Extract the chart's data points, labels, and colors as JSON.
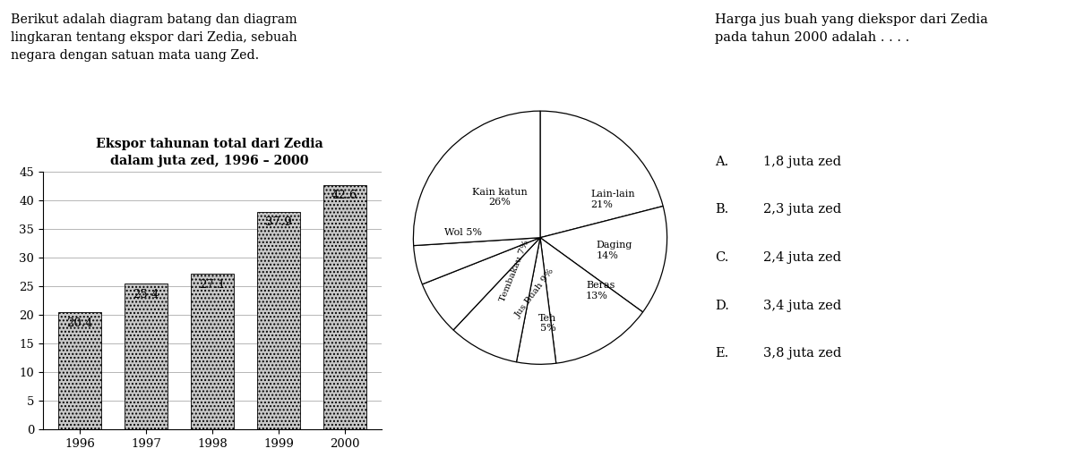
{
  "intro_text": "Berikut adalah diagram batang dan diagram\nlingkaran tentang ekspor dari Zedia, sebuah\nnegara dengan satuan mata uang Zed.",
  "bar_title": "Ekspor tahunan total dari Zedia\ndalam juta zed, 1996 – 2000",
  "bar_years": [
    "1996",
    "1997",
    "1998",
    "1999",
    "2000"
  ],
  "bar_values": [
    20.4,
    25.4,
    27.1,
    37.9,
    42.6
  ],
  "bar_color": "#c8c8c8",
  "ylim": [
    0,
    45
  ],
  "yticks": [
    0,
    5,
    10,
    15,
    20,
    25,
    30,
    35,
    40,
    45
  ],
  "pie_sizes": [
    21,
    14,
    13,
    5,
    9,
    7,
    5,
    26
  ],
  "pie_startangle": 90,
  "question_text": "Harga jus buah yang diekspor dari Zedia\npada tahun 2000 adalah . . . .",
  "options": [
    [
      "A.",
      "1,8 juta zed"
    ],
    [
      "B.",
      "2,3 juta zed"
    ],
    [
      "C.",
      "2,4 juta zed"
    ],
    [
      "D.",
      "3,4 juta zed"
    ],
    [
      "E.",
      "3,8 juta zed"
    ]
  ],
  "bg_color": "#ffffff"
}
